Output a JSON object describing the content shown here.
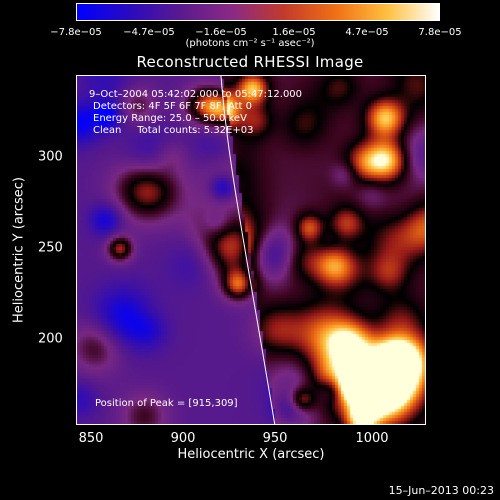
{
  "colorbar": {
    "ticks": [
      "−7.8e−05",
      "−4.7e−05",
      "−1.6e−05",
      "1.6e−05",
      "4.7e−05",
      "7.8e−05"
    ],
    "units": "(photons cm⁻² s⁻¹ asec⁻²)",
    "colors": [
      "#0000ff",
      "#2a0ac0",
      "#5a1a8e",
      "#8a2a85",
      "#c23a2a",
      "#f07015",
      "#ffc040",
      "#ffffff"
    ]
  },
  "title": "Reconstructed RHESSI Image",
  "annotations": {
    "time_range": "9–Oct–2004 05:42:02.000 to 05:47:12.000",
    "detectors": "Detectors: 4F 5F 6F 7F 8F, Att 0",
    "energy": "Energy Range: 25.0 – 50.0 keV",
    "clean": "Clean     Total counts: 5.32E+03",
    "peak": "Position of Peak = [915,309]"
  },
  "axes": {
    "xlabel": "Heliocentric X (arcsec)",
    "ylabel": "Heliocentric Y (arcsec)",
    "xticks": [
      "850",
      "900",
      "950",
      "1000"
    ],
    "yticks": [
      "300",
      "250",
      "200"
    ],
    "xlim": [
      835,
      1025
    ],
    "ylim": [
      150,
      340
    ]
  },
  "footer": "15–Jun–2013 00:23"
}
